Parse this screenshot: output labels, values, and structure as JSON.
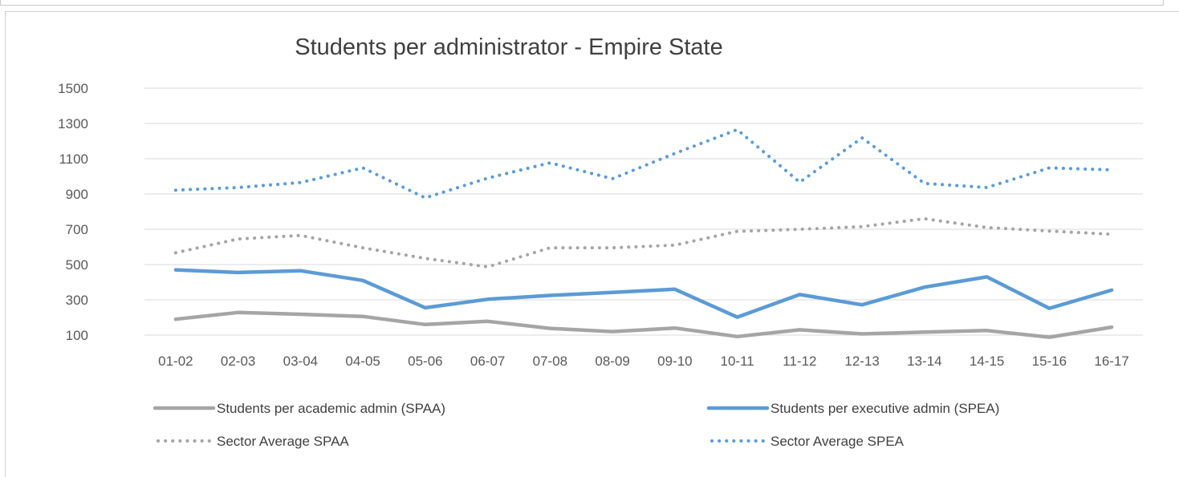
{
  "chart_data": {
    "type": "line",
    "title": "Students per administrator - Empire State",
    "xlabel": "",
    "ylabel": "",
    "categories": [
      "01-02",
      "02-03",
      "03-04",
      "04-05",
      "05-06",
      "06-07",
      "07-08",
      "08-09",
      "09-10",
      "10-11",
      "11-12",
      "12-13",
      "13-14",
      "14-15",
      "15-16",
      "16-17"
    ],
    "ylim": [
      100,
      1500
    ],
    "yticks": [
      100,
      300,
      500,
      700,
      900,
      1100,
      1300,
      1500
    ],
    "grid": "horizontal",
    "legend_position": "bottom",
    "series": [
      {
        "name": "Students per academic admin (SPAA)",
        "style": "solid",
        "color": "#a5a5a5",
        "values": [
          190,
          228,
          218,
          206,
          160,
          178,
          138,
          120,
          140,
          92,
          130,
          107,
          117,
          126,
          88,
          145
        ]
      },
      {
        "name": "Students per executive admin (SPEA)",
        "style": "solid",
        "color": "#5b9bd5",
        "values": [
          470,
          455,
          465,
          410,
          255,
          303,
          325,
          342,
          360,
          202,
          330,
          272,
          372,
          430,
          252,
          355
        ]
      },
      {
        "name": "Sector Average SPAA",
        "style": "dotted",
        "color": "#a5a5a5",
        "values": [
          567,
          645,
          665,
          595,
          535,
          487,
          595,
          595,
          610,
          688,
          700,
          715,
          760,
          710,
          690,
          672
        ]
      },
      {
        "name": "Sector Average SPEA",
        "style": "dotted",
        "color": "#5b9bd5",
        "values": [
          922,
          937,
          965,
          1048,
          878,
          990,
          1077,
          987,
          1130,
          1265,
          967,
          1218,
          960,
          937,
          1048,
          1037
        ]
      }
    ]
  }
}
